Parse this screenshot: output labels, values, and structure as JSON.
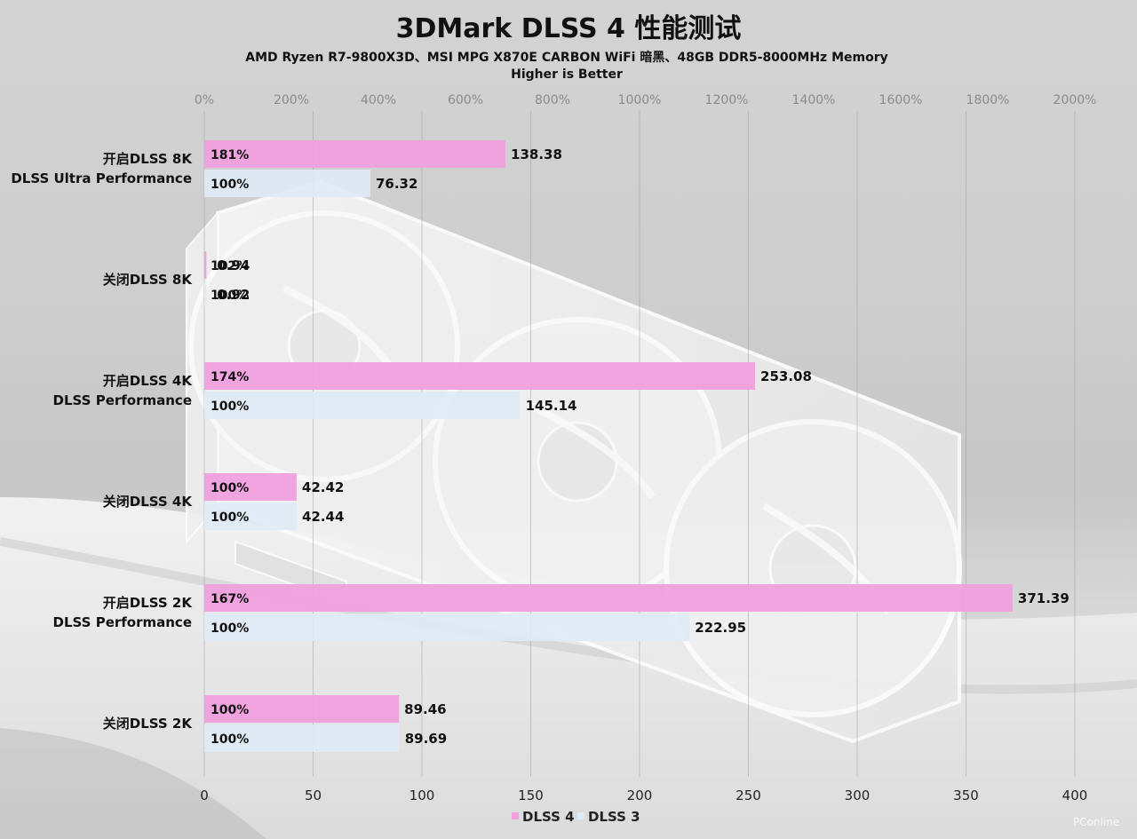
{
  "chart_data": {
    "type": "bar",
    "title": "3DMark DLSS 4 性能测试",
    "subtitle": "AMD Ryzen R7-9800X3D、MSI MPG X870E CARBON WiFi 暗黑、48GB DDR5-8000MHz Memory",
    "subtitle2": "Higher is Better",
    "categories": [
      [
        "开启DLSS 8K",
        "DLSS Ultra Performance"
      ],
      [
        "关闭DLSS 8K"
      ],
      [
        "开启DLSS 4K",
        "DLSS Performance"
      ],
      [
        "关闭DLSS 4K"
      ],
      [
        "开启DLSS 2K",
        "DLSS Performance"
      ],
      [
        "关闭DLSS 2K"
      ]
    ],
    "series": [
      {
        "name": "DLSS 4",
        "color": "#f0a0de",
        "values": [
          138.38,
          0.94,
          253.08,
          42.42,
          371.39,
          89.46
        ],
        "pct_labels": [
          "181%",
          "102%",
          "174%",
          "100%",
          "167%",
          "100%"
        ],
        "pct_values": [
          181,
          102,
          174,
          100,
          167,
          100
        ]
      },
      {
        "name": "DLSS 3",
        "color": "#dfeaf5",
        "values": [
          76.32,
          0.92,
          145.14,
          42.44,
          222.95,
          89.69
        ],
        "pct_labels": [
          "100%",
          "100%",
          "100%",
          "100%",
          "100%",
          "100%"
        ],
        "pct_values": [
          100,
          100,
          100,
          100,
          100,
          100
        ]
      }
    ],
    "bottom_axis": {
      "min": 0,
      "max": 400,
      "ticks": [
        "0",
        "50",
        "100",
        "150",
        "200",
        "250",
        "300",
        "350",
        "400"
      ]
    },
    "top_axis": {
      "min": 0,
      "max": 2000,
      "ticks": [
        "0%",
        "200%",
        "400%",
        "600%",
        "800%",
        "1000%",
        "1200%",
        "1400%",
        "1600%",
        "1800%",
        "2000%"
      ]
    },
    "grid": true,
    "legend_position": "bottom-center",
    "watermark": "PConline"
  }
}
